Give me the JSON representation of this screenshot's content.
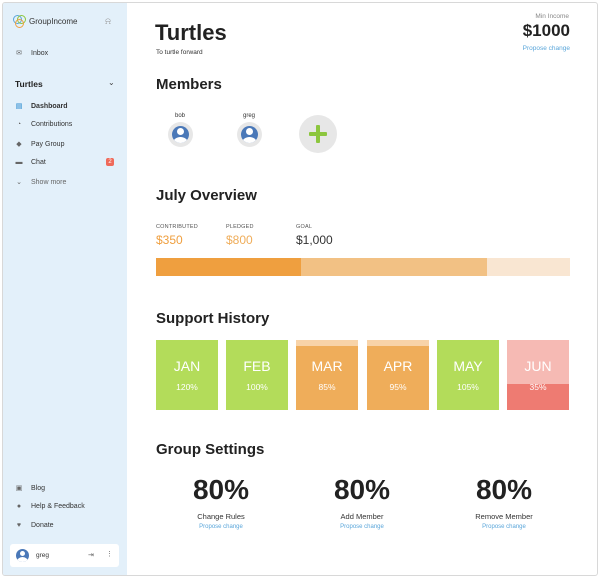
{
  "app": {
    "name": "GroupIncome"
  },
  "sidebar": {
    "inbox": "Inbox",
    "group_name": "Turtles",
    "items": [
      {
        "label": "Dashboard",
        "icon": "dashboard-icon",
        "active": true
      },
      {
        "label": "Contributions",
        "icon": "chart-pie-icon"
      },
      {
        "label": "Pay Group",
        "icon": "tag-icon"
      },
      {
        "label": "Chat",
        "icon": "chat-icon",
        "badge": "2"
      }
    ],
    "show_more": "Show more",
    "footer": [
      {
        "label": "Blog",
        "icon": "blog-icon"
      },
      {
        "label": "Help & Feedback",
        "icon": "help-icon"
      },
      {
        "label": "Donate",
        "icon": "heart-icon"
      }
    ],
    "user": {
      "name": "greg"
    }
  },
  "header": {
    "title": "Turtles",
    "subtitle": "To turtle forward",
    "min_income_label": "Min Income",
    "min_income_value": "$1000",
    "propose_change": "Propose change"
  },
  "members": {
    "heading": "Members",
    "list": [
      {
        "name": "bob"
      },
      {
        "name": "greg"
      }
    ]
  },
  "overview": {
    "heading": "July Overview",
    "contributed_label": "CONTRIBUTED",
    "contributed_value": "$350",
    "pledged_label": "PLEDGED",
    "pledged_value": "$800",
    "goal_label": "GOAL",
    "goal_value": "$1,000",
    "progress_contributed": 0.35,
    "progress_pledged": 0.8,
    "colors": {
      "contributed": "#ef9f3f",
      "pledged": "#f2c184",
      "goal": "#f9e6d2"
    }
  },
  "history": {
    "heading": "Support History",
    "months": [
      {
        "month": "JAN",
        "pct": "120%",
        "fill": 1.0,
        "color": "#b3dc5a",
        "bg": "#b3dc5a"
      },
      {
        "month": "FEB",
        "pct": "100%",
        "fill": 1.0,
        "color": "#b3dc5a",
        "bg": "#b3dc5a"
      },
      {
        "month": "MAR",
        "pct": "85%",
        "fill": 0.85,
        "color": "#efad5a",
        "bg": "#f8d3a8"
      },
      {
        "month": "APR",
        "pct": "95%",
        "fill": 0.95,
        "color": "#efad5a",
        "bg": "#f8d3a8"
      },
      {
        "month": "MAY",
        "pct": "105%",
        "fill": 1.0,
        "color": "#b3dc5a",
        "bg": "#b3dc5a"
      },
      {
        "month": "JUN",
        "pct": "35%",
        "fill": 0.35,
        "color": "#ee7b72",
        "bg": "#f6bab4"
      }
    ]
  },
  "settings": {
    "heading": "Group Settings",
    "items": [
      {
        "value": "80%",
        "name": "Change Rules",
        "link": "Propose change"
      },
      {
        "value": "80%",
        "name": "Add Member",
        "link": "Propose change"
      },
      {
        "value": "80%",
        "name": "Remove Member",
        "link": "Propose change"
      }
    ]
  }
}
